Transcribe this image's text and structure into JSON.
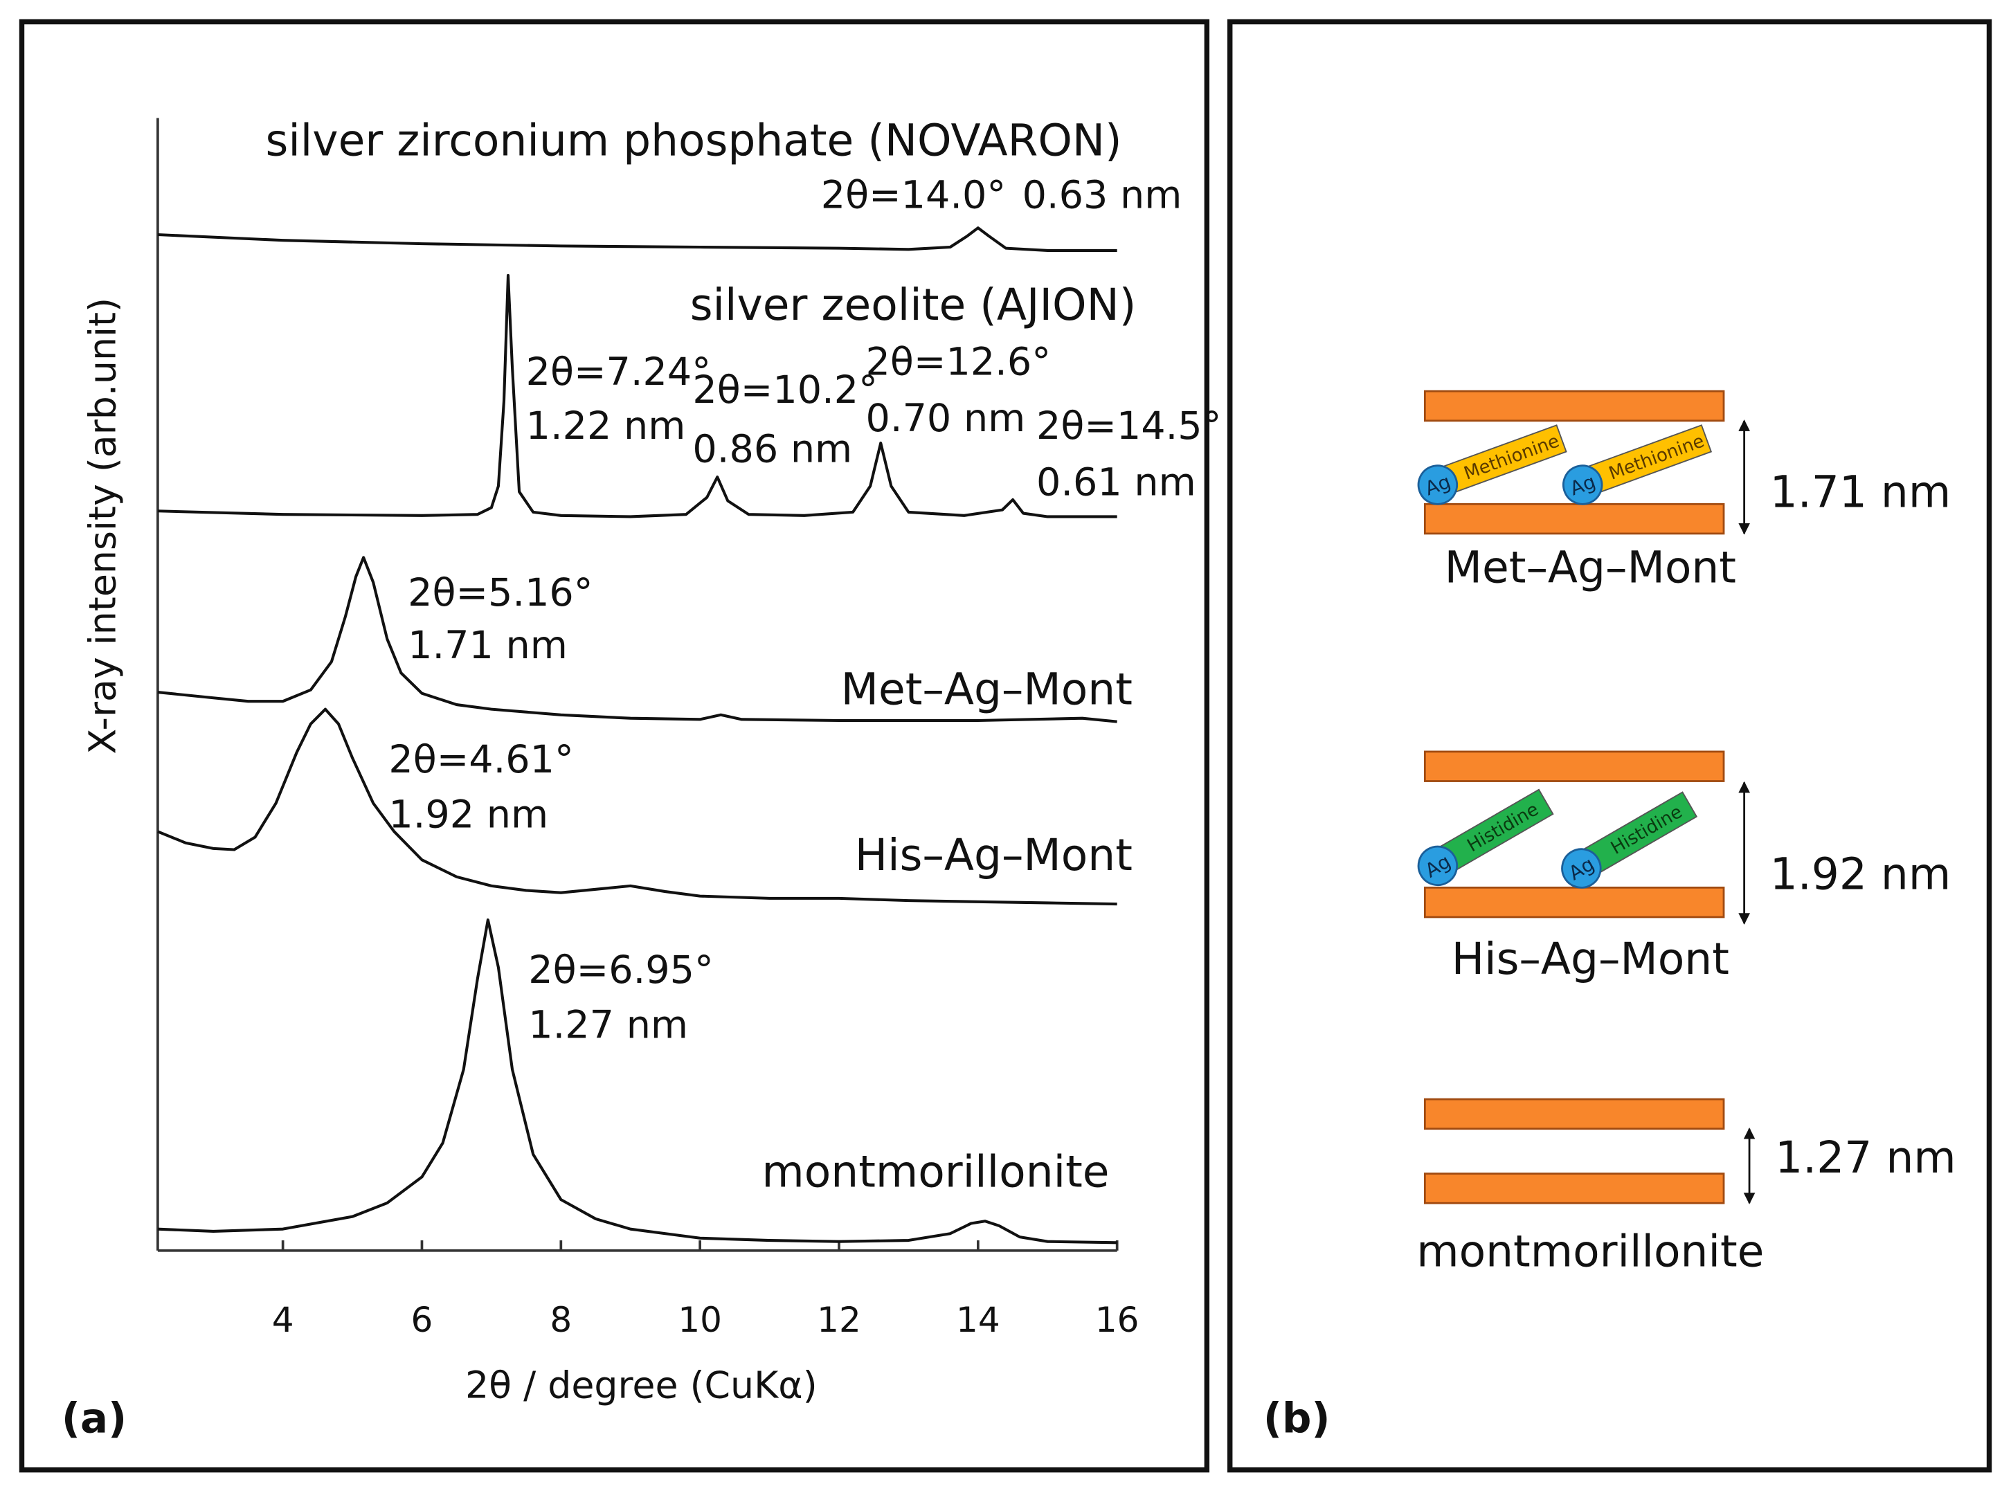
{
  "chart_data": {
    "type": "line",
    "panel_label": "(a)",
    "xlabel": "2θ / degree (CuKα)",
    "ylabel": "X-ray intensity (arb.unit)",
    "xlim": [
      2.2,
      16
    ],
    "xticks": [
      4,
      6,
      8,
      10,
      12,
      14,
      16
    ],
    "ylim": [
      0,
      100
    ],
    "grid": false,
    "series": [
      {
        "name": "silver zirconium phosphate (NOVARON)",
        "color": "#111111",
        "x": [
          2.2,
          4,
          6,
          8,
          10,
          12,
          13,
          13.6,
          13.85,
          14.0,
          14.15,
          14.4,
          15,
          16
        ],
        "values": [
          89.7,
          89.2,
          88.9,
          88.7,
          88.6,
          88.5,
          88.4,
          88.6,
          89.6,
          90.3,
          89.6,
          88.5,
          88.3,
          88.3
        ]
      },
      {
        "name": "silver zeolite (AJION)",
        "color": "#111111",
        "x": [
          2.2,
          4,
          6,
          6.8,
          7.0,
          7.1,
          7.18,
          7.24,
          7.3,
          7.4,
          7.6,
          8,
          9,
          9.8,
          10.1,
          10.25,
          10.4,
          10.7,
          11.5,
          12.2,
          12.45,
          12.6,
          12.75,
          13,
          13.8,
          14.35,
          14.5,
          14.65,
          15,
          16
        ],
        "values": [
          65.3,
          65.0,
          64.9,
          65.0,
          65.6,
          67.5,
          75,
          86.1,
          78,
          67,
          65.2,
          64.9,
          64.8,
          65.0,
          66.5,
          68.3,
          66.2,
          65.0,
          64.9,
          65.2,
          67.5,
          71.3,
          67.5,
          65.2,
          64.9,
          65.4,
          66.3,
          65.1,
          64.8,
          64.8
        ]
      },
      {
        "name": "Met–Ag–Mont",
        "color": "#111111",
        "x": [
          2.2,
          3,
          3.5,
          4,
          4.4,
          4.7,
          4.9,
          5.05,
          5.16,
          5.3,
          5.5,
          5.7,
          6,
          6.5,
          7,
          8,
          9,
          10,
          10.3,
          10.6,
          12,
          14,
          15.5,
          16
        ],
        "values": [
          49.3,
          48.8,
          48.5,
          48.5,
          49.5,
          52,
          56,
          59.5,
          61.2,
          59,
          54,
          51,
          49.2,
          48.2,
          47.8,
          47.3,
          47.0,
          46.9,
          47.3,
          46.9,
          46.8,
          46.8,
          47.0,
          46.7
        ]
      },
      {
        "name": "His–Ag–Mont",
        "color": "#111111",
        "x": [
          2.2,
          2.6,
          3.0,
          3.3,
          3.6,
          3.9,
          4.2,
          4.4,
          4.61,
          4.8,
          5.0,
          5.3,
          5.6,
          6.0,
          6.5,
          7,
          7.5,
          8,
          8.5,
          9,
          9.5,
          10,
          11,
          12,
          13,
          14,
          15,
          16
        ],
        "values": [
          37.0,
          36.0,
          35.5,
          35.4,
          36.5,
          39.5,
          44,
          46.5,
          47.8,
          46.5,
          43.5,
          39.5,
          37,
          34.5,
          33,
          32.2,
          31.8,
          31.6,
          31.9,
          32.2,
          31.7,
          31.3,
          31.1,
          31.1,
          30.9,
          30.8,
          30.7,
          30.6
        ]
      },
      {
        "name": "montmorillonite",
        "color": "#111111",
        "x": [
          2.2,
          3,
          4,
          5,
          5.5,
          6,
          6.3,
          6.6,
          6.8,
          6.95,
          7.1,
          7.3,
          7.6,
          8,
          8.5,
          9,
          10,
          11,
          12,
          13,
          13.6,
          13.9,
          14.1,
          14.3,
          14.6,
          15,
          16
        ],
        "values": [
          1.9,
          1.7,
          1.9,
          3.0,
          4.2,
          6.5,
          9.5,
          16,
          24,
          29.2,
          25,
          16,
          8.5,
          4.5,
          2.8,
          1.9,
          1.1,
          0.9,
          0.8,
          0.9,
          1.5,
          2.4,
          2.6,
          2.2,
          1.2,
          0.8,
          0.7
        ]
      }
    ],
    "annotations": [
      "2θ=14.0°",
      "0.63 nm",
      "2θ=7.24°",
      "1.22 nm",
      "2θ=10.2°",
      "0.86 nm",
      "2θ=12.6°",
      "0.70 nm",
      "2θ=14.5°",
      "0.61 nm",
      "2θ=5.16°",
      "1.71 nm",
      "2θ=4.61°",
      "1.92 nm",
      "2θ=6.95°",
      "1.27 nm"
    ]
  },
  "diagram": {
    "panel_label": "(b)",
    "structures": [
      {
        "name": "Met–Ag–Mont",
        "spacing": "1.71 nm",
        "ion": "Ag",
        "molecule": "Methionine"
      },
      {
        "name": "His–Ag–Mont",
        "spacing": "1.92 nm",
        "ion": "Ag",
        "molecule": "Histidine"
      },
      {
        "name": "montmorillonite",
        "spacing": "1.27 nm"
      }
    ]
  }
}
